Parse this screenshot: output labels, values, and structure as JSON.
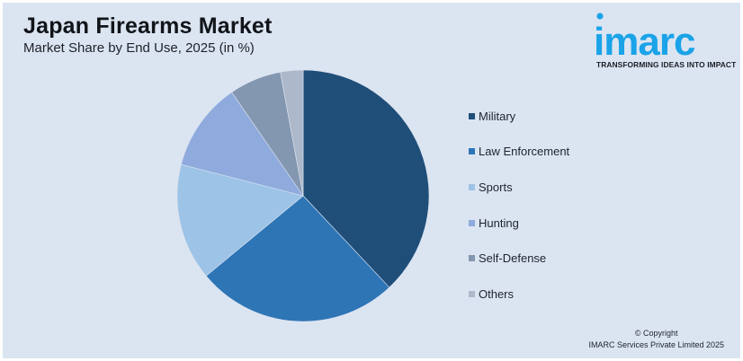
{
  "header": {
    "title": "Japan Firearms Market",
    "subtitle": "Market Share by End Use, 2025 (in %)"
  },
  "logo": {
    "brand": "imarc",
    "tagline": "TRANSFORMING IDEAS INTO IMPACT",
    "color": "#1aa3e8"
  },
  "footer": {
    "copyright_line1": "© Copyright",
    "copyright_line2": "IMARC Services Private Limited 2025"
  },
  "chart_data": {
    "type": "pie",
    "title": "Japan Firearms Market",
    "subtitle": "Market Share by End Use, 2025 (in %)",
    "categories": [
      "Military",
      "Law Enforcement",
      "Sports",
      "Hunting",
      "Self-Defense",
      "Others"
    ],
    "values": [
      38,
      26,
      15,
      11.4,
      6.7,
      2.9
    ],
    "colors": [
      "#1f4e79",
      "#2e75b6",
      "#9dc3e6",
      "#8faadc",
      "#8497b0",
      "#adb9ca"
    ],
    "start_angle": "12 o'clock, clockwise",
    "legend_position": "right",
    "data_labels": false
  },
  "legend": {
    "items": [
      {
        "label": "Military",
        "color": "#1f4e79"
      },
      {
        "label": "Law Enforcement",
        "color": "#2e75b6"
      },
      {
        "label": "Sports",
        "color": "#9dc3e6"
      },
      {
        "label": "Hunting",
        "color": "#8faadc"
      },
      {
        "label": "Self-Defense",
        "color": "#8497b0"
      },
      {
        "label": "Others",
        "color": "#adb9ca"
      }
    ]
  }
}
